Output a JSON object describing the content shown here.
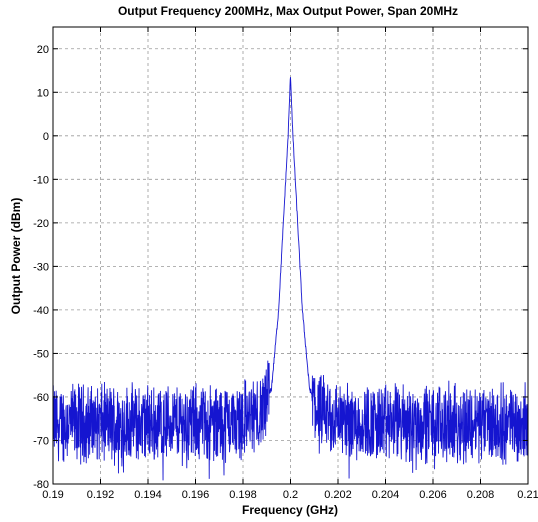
{
  "chart_data": {
    "type": "line",
    "title": "Output Frequency 200MHz, Max Output Power, Span 20MHz",
    "xlabel": "Frequency (GHz)",
    "ylabel": "Output Power (dBm)",
    "xlim": [
      0.19,
      0.21
    ],
    "ylim": [
      -80,
      25
    ],
    "xticks": [
      0.19,
      0.192,
      0.194,
      0.196,
      0.198,
      0.2,
      0.202,
      0.204,
      0.206,
      0.208,
      0.21
    ],
    "xtick_labels": [
      "0.19",
      "0.192",
      "0.194",
      "0.196",
      "0.198",
      "0.2",
      "0.202",
      "0.204",
      "0.206",
      "0.208",
      "0.21"
    ],
    "yticks": [
      -80,
      -70,
      -60,
      -50,
      -40,
      -30,
      -20,
      -10,
      0,
      10,
      20
    ],
    "ytick_labels": [
      "-80",
      "-70",
      "-60",
      "-50",
      "-40",
      "-30",
      "-20",
      "-10",
      "0",
      "10",
      "20"
    ],
    "grid": true,
    "line_color": "#1515d0",
    "series": [
      {
        "x": [
          0.19,
          0.197,
          0.1988,
          0.1992,
          0.1995,
          0.1997,
          0.1999,
          0.2,
          0.2001,
          0.2003,
          0.2005,
          0.2008,
          0.2012,
          0.203,
          0.21
        ],
        "values": [
          -66,
          -66,
          -64,
          -58,
          -40,
          -20,
          0,
          14,
          0,
          -20,
          -40,
          -58,
          -64,
          -66,
          -66
        ]
      }
    ]
  }
}
